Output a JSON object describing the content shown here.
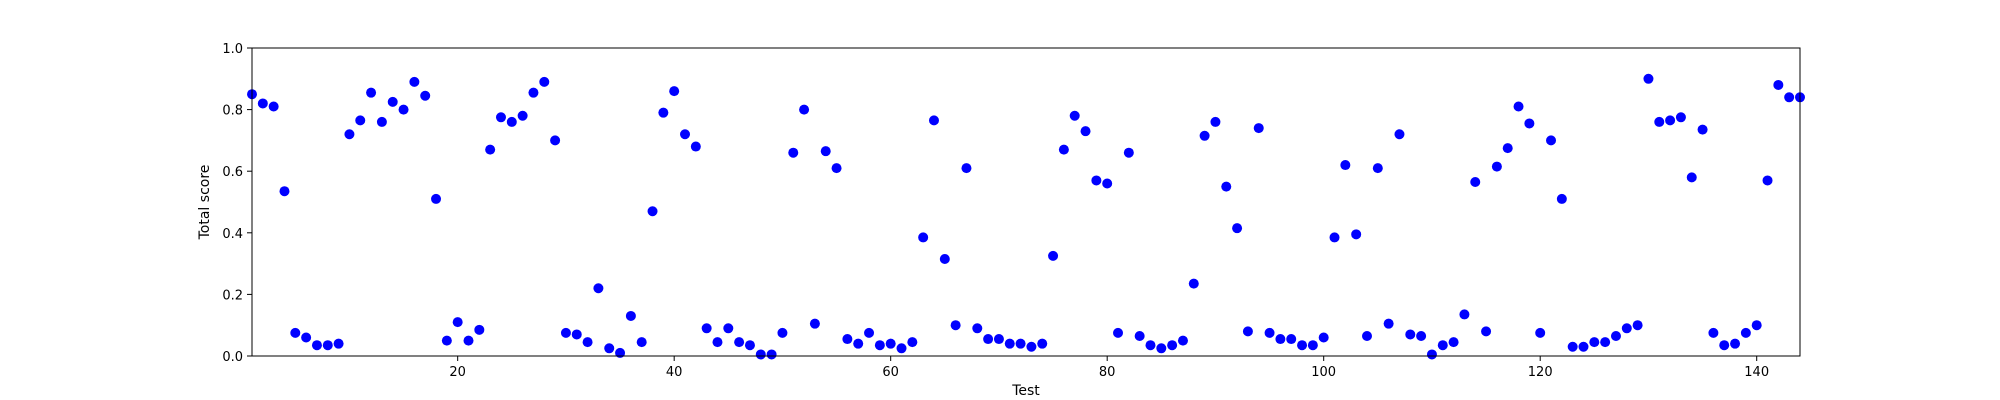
{
  "chart_data": {
    "type": "scatter",
    "xlabel": "Test",
    "ylabel": "Total score",
    "xlim": [
      1,
      144
    ],
    "ylim": [
      0.0,
      1.0
    ],
    "xticks": [
      20,
      40,
      60,
      80,
      100,
      120,
      140
    ],
    "yticks": [
      "0.0",
      "0.2",
      "0.4",
      "0.6",
      "0.8",
      "1.0"
    ],
    "grid": false,
    "marker_color": "#0000ff",
    "x": [
      1,
      2,
      3,
      4,
      5,
      6,
      7,
      8,
      9,
      10,
      11,
      12,
      13,
      14,
      15,
      16,
      17,
      18,
      19,
      20,
      21,
      22,
      23,
      24,
      25,
      26,
      27,
      28,
      29,
      30,
      31,
      32,
      33,
      34,
      35,
      36,
      37,
      38,
      39,
      40,
      41,
      42,
      43,
      44,
      45,
      46,
      47,
      48,
      49,
      50,
      51,
      52,
      53,
      54,
      55,
      56,
      57,
      58,
      59,
      60,
      61,
      62,
      63,
      64,
      65,
      66,
      67,
      68,
      69,
      70,
      71,
      72,
      73,
      74,
      75,
      76,
      77,
      78,
      79,
      80,
      81,
      82,
      83,
      84,
      85,
      86,
      87,
      88,
      89,
      90,
      91,
      92,
      93,
      94,
      95,
      96,
      97,
      98,
      99,
      100,
      101,
      102,
      103,
      104,
      105,
      106,
      107,
      108,
      109,
      110,
      111,
      112,
      113,
      114,
      115,
      116,
      117,
      118,
      119,
      120,
      121,
      122,
      123,
      124,
      125,
      126,
      127,
      128,
      129,
      130,
      131,
      132,
      133,
      134,
      135,
      136,
      137,
      138,
      139,
      140,
      141,
      142,
      143,
      144
    ],
    "y": [
      0.85,
      0.82,
      0.81,
      0.535,
      0.075,
      0.06,
      0.035,
      0.035,
      0.04,
      0.72,
      0.765,
      0.855,
      0.76,
      0.825,
      0.8,
      0.89,
      0.845,
      0.51,
      0.05,
      0.11,
      0.05,
      0.085,
      0.67,
      0.775,
      0.76,
      0.78,
      0.855,
      0.89,
      0.7,
      0.075,
      0.07,
      0.045,
      0.22,
      0.025,
      0.01,
      0.13,
      0.045,
      0.47,
      0.79,
      0.86,
      0.72,
      0.68,
      0.09,
      0.045,
      0.09,
      0.045,
      0.035,
      0.005,
      0.005,
      0.075,
      0.66,
      0.8,
      0.105,
      0.665,
      0.61,
      0.055,
      0.04,
      0.075,
      0.035,
      0.04,
      0.025,
      0.045,
      0.385,
      0.765,
      0.315,
      0.1,
      0.61,
      0.09,
      0.055,
      0.055,
      0.04,
      0.04,
      0.03,
      0.04,
      0.325,
      0.67,
      0.78,
      0.73,
      0.57,
      0.56,
      0.075,
      0.66,
      0.065,
      0.035,
      0.025,
      0.035,
      0.05,
      0.235,
      0.715,
      0.76,
      0.55,
      0.415,
      0.08,
      0.74,
      0.075,
      0.055,
      0.055,
      0.035,
      0.035,
      0.06,
      0.385,
      0.62,
      0.395,
      0.065,
      0.61,
      0.105,
      0.72,
      0.07,
      0.065,
      0.005,
      0.035,
      0.045,
      0.135,
      0.565,
      0.08,
      0.615,
      0.675,
      0.81,
      0.755,
      0.075,
      0.7,
      0.51,
      0.03,
      0.03,
      0.045,
      0.045,
      0.065,
      0.09,
      0.1,
      0.9,
      0.76,
      0.765,
      0.775,
      0.58,
      0.735,
      0.075,
      0.035,
      0.04,
      0.075,
      0.1,
      0.57,
      0.88,
      0.84,
      0.84
    ]
  }
}
